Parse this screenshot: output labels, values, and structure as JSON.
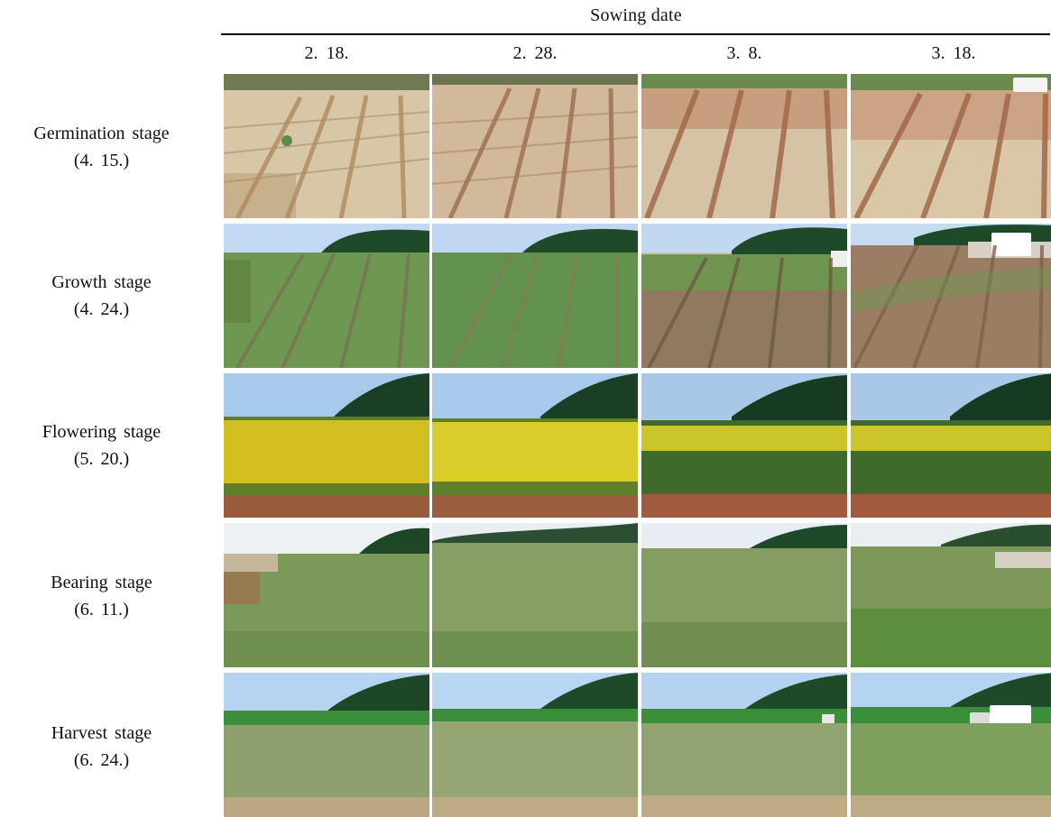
{
  "header": {
    "title": "Sowing date"
  },
  "sowing_dates": [
    "2. 18.",
    "2. 28.",
    "3. 8.",
    "3. 18."
  ],
  "stages": [
    {
      "name": "Germination stage",
      "date": "(4. 15.)"
    },
    {
      "name": "Growth stage",
      "date": "(4. 24.)"
    },
    {
      "name": "Flowering stage",
      "date": "(5. 20.)"
    },
    {
      "name": "Bearing stage",
      "date": "(6. 11.)"
    },
    {
      "name": "Harvest stage",
      "date": "(6. 24.)"
    }
  ],
  "colors": {
    "rule": "#000000",
    "soil_dry": "#d8c7a7",
    "soil_dark": "#a47353",
    "seedling_green": "#5b8c45",
    "field_green": "#7b9a5a",
    "flower_yellow": "#e0d12a",
    "sky": "#b8d4ef",
    "hill": "#1f4a2a"
  }
}
